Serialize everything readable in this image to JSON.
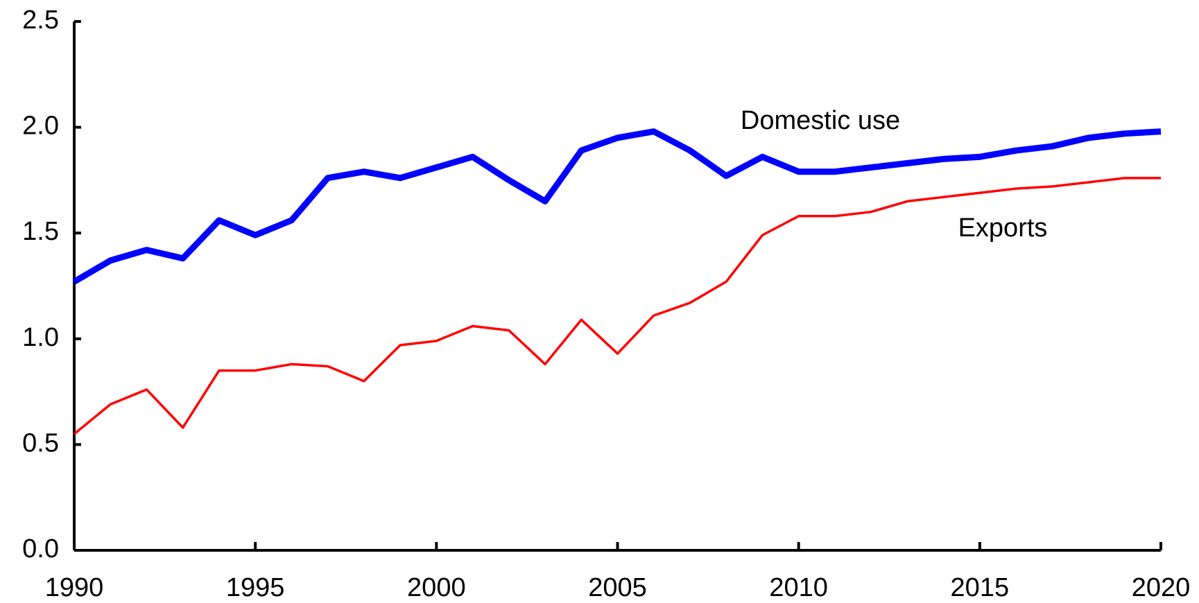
{
  "chart_data": {
    "type": "line",
    "x": [
      1990,
      1991,
      1992,
      1993,
      1994,
      1995,
      1996,
      1997,
      1998,
      1999,
      2000,
      2001,
      2002,
      2003,
      2004,
      2005,
      2006,
      2007,
      2008,
      2009,
      2010,
      2011,
      2012,
      2013,
      2014,
      2015,
      2016,
      2017,
      2018,
      2019,
      2020
    ],
    "series": [
      {
        "name": "Domestic use",
        "color": "#0000ff",
        "values": [
          1.27,
          1.37,
          1.42,
          1.38,
          1.56,
          1.49,
          1.56,
          1.76,
          1.79,
          1.76,
          1.81,
          1.86,
          1.75,
          1.65,
          1.89,
          1.95,
          1.98,
          1.89,
          1.77,
          1.86,
          1.79,
          1.79,
          1.81,
          1.83,
          1.85,
          1.86,
          1.89,
          1.91,
          1.95,
          1.97,
          1.98
        ]
      },
      {
        "name": "Exports",
        "color": "#ff0000",
        "values": [
          0.55,
          0.69,
          0.76,
          0.58,
          0.85,
          0.85,
          0.88,
          0.87,
          0.8,
          0.97,
          0.99,
          1.06,
          1.04,
          0.88,
          1.09,
          0.93,
          1.11,
          1.17,
          1.27,
          1.49,
          1.58,
          1.58,
          1.6,
          1.65,
          1.67,
          1.69,
          1.71,
          1.72,
          1.74,
          1.76,
          1.76
        ]
      }
    ],
    "xlim": [
      1990,
      2020
    ],
    "xticks": [
      1990,
      1995,
      2000,
      2005,
      2010,
      2015,
      2020
    ],
    "ylim": [
      0,
      2.5
    ],
    "yticks": [
      {
        "value": 0,
        "label": "0.0"
      },
      {
        "value": 0.5,
        "label": "0.5"
      },
      {
        "value": 1,
        "label": "1.0"
      },
      {
        "value": 1.5,
        "label": "1.5"
      },
      {
        "value": 2,
        "label": "2.0"
      },
      {
        "value": 2.5,
        "label": "2.5"
      }
    ],
    "grid": false
  }
}
